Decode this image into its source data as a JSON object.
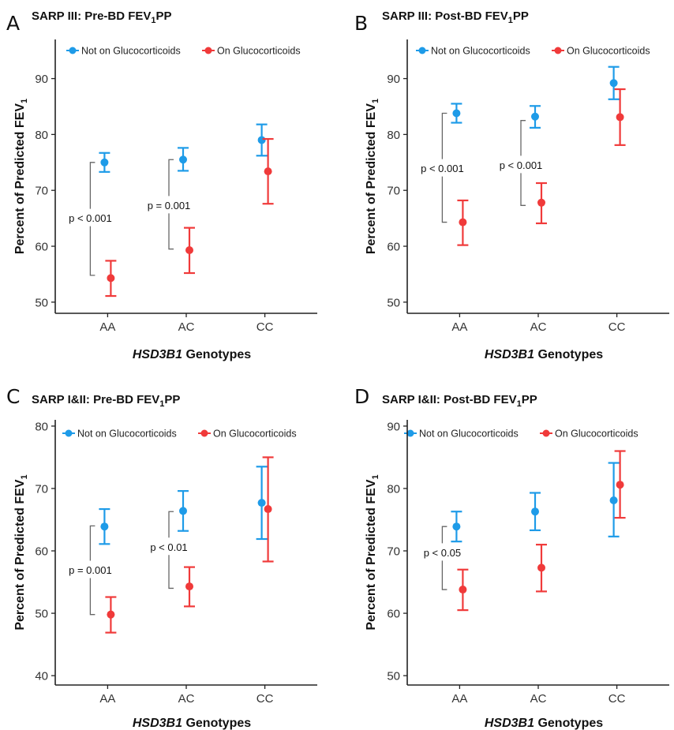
{
  "colors": {
    "not_on": "#1e9be8",
    "on": "#f03a3a",
    "axis": "#222222",
    "bracket": "#666666"
  },
  "chart_data": [
    {
      "type": "scatter",
      "panel": "A",
      "title": "SARP III: Pre-BD FEV",
      "title_sub": "1",
      "title_suffix": "PP",
      "ylabel": "Percent of Predicted FEV",
      "ylabel_sub": "1",
      "xlabel_italic": "HSD3B1",
      "xlabel_rest": " Genotypes",
      "categories": [
        "AA",
        "AC",
        "CC"
      ],
      "ylim": [
        48,
        97
      ],
      "yticks": [
        50,
        60,
        70,
        80,
        90
      ],
      "legend": [
        "Not on Glucocorticoids",
        "On Glucocorticoids"
      ],
      "series": [
        {
          "name": "Not on Glucocorticoids",
          "values": [
            75.0,
            75.5,
            79.0
          ],
          "lower": [
            73.3,
            73.5,
            76.2
          ],
          "upper": [
            76.7,
            77.6,
            81.8
          ]
        },
        {
          "name": "On Glucocorticoids",
          "values": [
            54.3,
            59.3,
            73.4
          ],
          "lower": [
            51.1,
            55.2,
            67.6
          ],
          "upper": [
            57.4,
            63.3,
            79.2
          ]
        }
      ],
      "annotations": [
        {
          "text": "p < 0.001",
          "category": "AA",
          "y1": 75.0,
          "y2": 54.8,
          "label_y": 65.0
        },
        {
          "text": "p = 0.001",
          "category": "AC",
          "y1": 75.5,
          "y2": 59.5,
          "label_y": 67.3
        }
      ]
    },
    {
      "type": "scatter",
      "panel": "B",
      "title": "SARP III: Post-BD FEV",
      "title_sub": "1",
      "title_suffix": "PP",
      "ylabel": "Percent of Predicted FEV",
      "ylabel_sub": "1",
      "xlabel_italic": "HSD3B1",
      "xlabel_rest": " Genotypes",
      "categories": [
        "AA",
        "AC",
        "CC"
      ],
      "ylim": [
        48,
        97
      ],
      "yticks": [
        50,
        60,
        70,
        80,
        90
      ],
      "legend": [
        "Not on Glucocorticoids",
        "On Glucocorticoids"
      ],
      "series": [
        {
          "name": "Not on Glucocorticoids",
          "values": [
            83.8,
            83.2,
            89.2
          ],
          "lower": [
            82.1,
            81.2,
            86.3
          ],
          "upper": [
            85.5,
            85.1,
            92.1
          ]
        },
        {
          "name": "On Glucocorticoids",
          "values": [
            64.3,
            67.8,
            83.1
          ],
          "lower": [
            60.2,
            64.1,
            78.1
          ],
          "upper": [
            68.2,
            71.3,
            88.1
          ]
        }
      ],
      "annotations": [
        {
          "text": "p < 0.001",
          "category": "AA",
          "y1": 83.8,
          "y2": 64.3,
          "label_y": 73.9
        },
        {
          "text": "p < 0.001",
          "category": "AC",
          "y1": 82.5,
          "y2": 67.3,
          "label_y": 74.5
        }
      ]
    },
    {
      "type": "scatter",
      "panel": "C",
      "title": "SARP I&II: Pre-BD FEV",
      "title_sub": "1",
      "title_suffix": "PP",
      "ylabel": "Percent of Predicted FEV",
      "ylabel_sub": "1",
      "xlabel_italic": "HSD3B1",
      "xlabel_rest": " Genotypes",
      "categories": [
        "AA",
        "AC",
        "CC"
      ],
      "ylim": [
        38.5,
        81
      ],
      "yticks": [
        40,
        50,
        60,
        70,
        80
      ],
      "legend": [
        "Not on Glucocorticoids",
        "On Glucocorticoids"
      ],
      "series": [
        {
          "name": "Not on Glucocorticoids",
          "values": [
            63.9,
            66.4,
            67.7
          ],
          "lower": [
            61.1,
            63.2,
            61.9
          ],
          "upper": [
            66.7,
            69.6,
            73.5
          ]
        },
        {
          "name": "On Glucocorticoids",
          "values": [
            49.8,
            54.3,
            66.7
          ],
          "lower": [
            46.9,
            51.1,
            58.3
          ],
          "upper": [
            52.6,
            57.4,
            75.0
          ]
        }
      ],
      "annotations": [
        {
          "text": "p = 0.001",
          "category": "AA",
          "y1": 64.0,
          "y2": 49.8,
          "label_y": 56.9
        },
        {
          "text": "p < 0.01",
          "category": "AC",
          "y1": 66.3,
          "y2": 54.0,
          "label_y": 60.6
        }
      ]
    },
    {
      "type": "scatter",
      "panel": "D",
      "title": "SARP I&II: Post-BD FEV",
      "title_sub": "1",
      "title_suffix": "PP",
      "ylabel": "Percent of Predicted FEV",
      "ylabel_sub": "1",
      "xlabel_italic": "HSD3B1",
      "xlabel_rest": " Genotypes",
      "categories": [
        "AA",
        "AC",
        "CC"
      ],
      "ylim": [
        48.5,
        91
      ],
      "yticks": [
        50,
        60,
        70,
        80,
        90
      ],
      "legend": [
        "Not on Glucocorticoids",
        "On Glucocorticoids"
      ],
      "series": [
        {
          "name": "Not on Glucocorticoids",
          "values": [
            73.9,
            76.3,
            78.1
          ],
          "lower": [
            71.5,
            73.3,
            72.3
          ],
          "upper": [
            76.3,
            79.3,
            84.1
          ]
        },
        {
          "name": "On Glucocorticoids",
          "values": [
            63.8,
            67.3,
            80.6
          ],
          "lower": [
            60.5,
            63.5,
            75.3
          ],
          "upper": [
            67.0,
            71.0,
            86.0
          ]
        }
      ],
      "annotations": [
        {
          "text": "p < 0.05",
          "category": "AA",
          "y1": 73.9,
          "y2": 63.8,
          "label_y": 69.7
        }
      ]
    }
  ]
}
